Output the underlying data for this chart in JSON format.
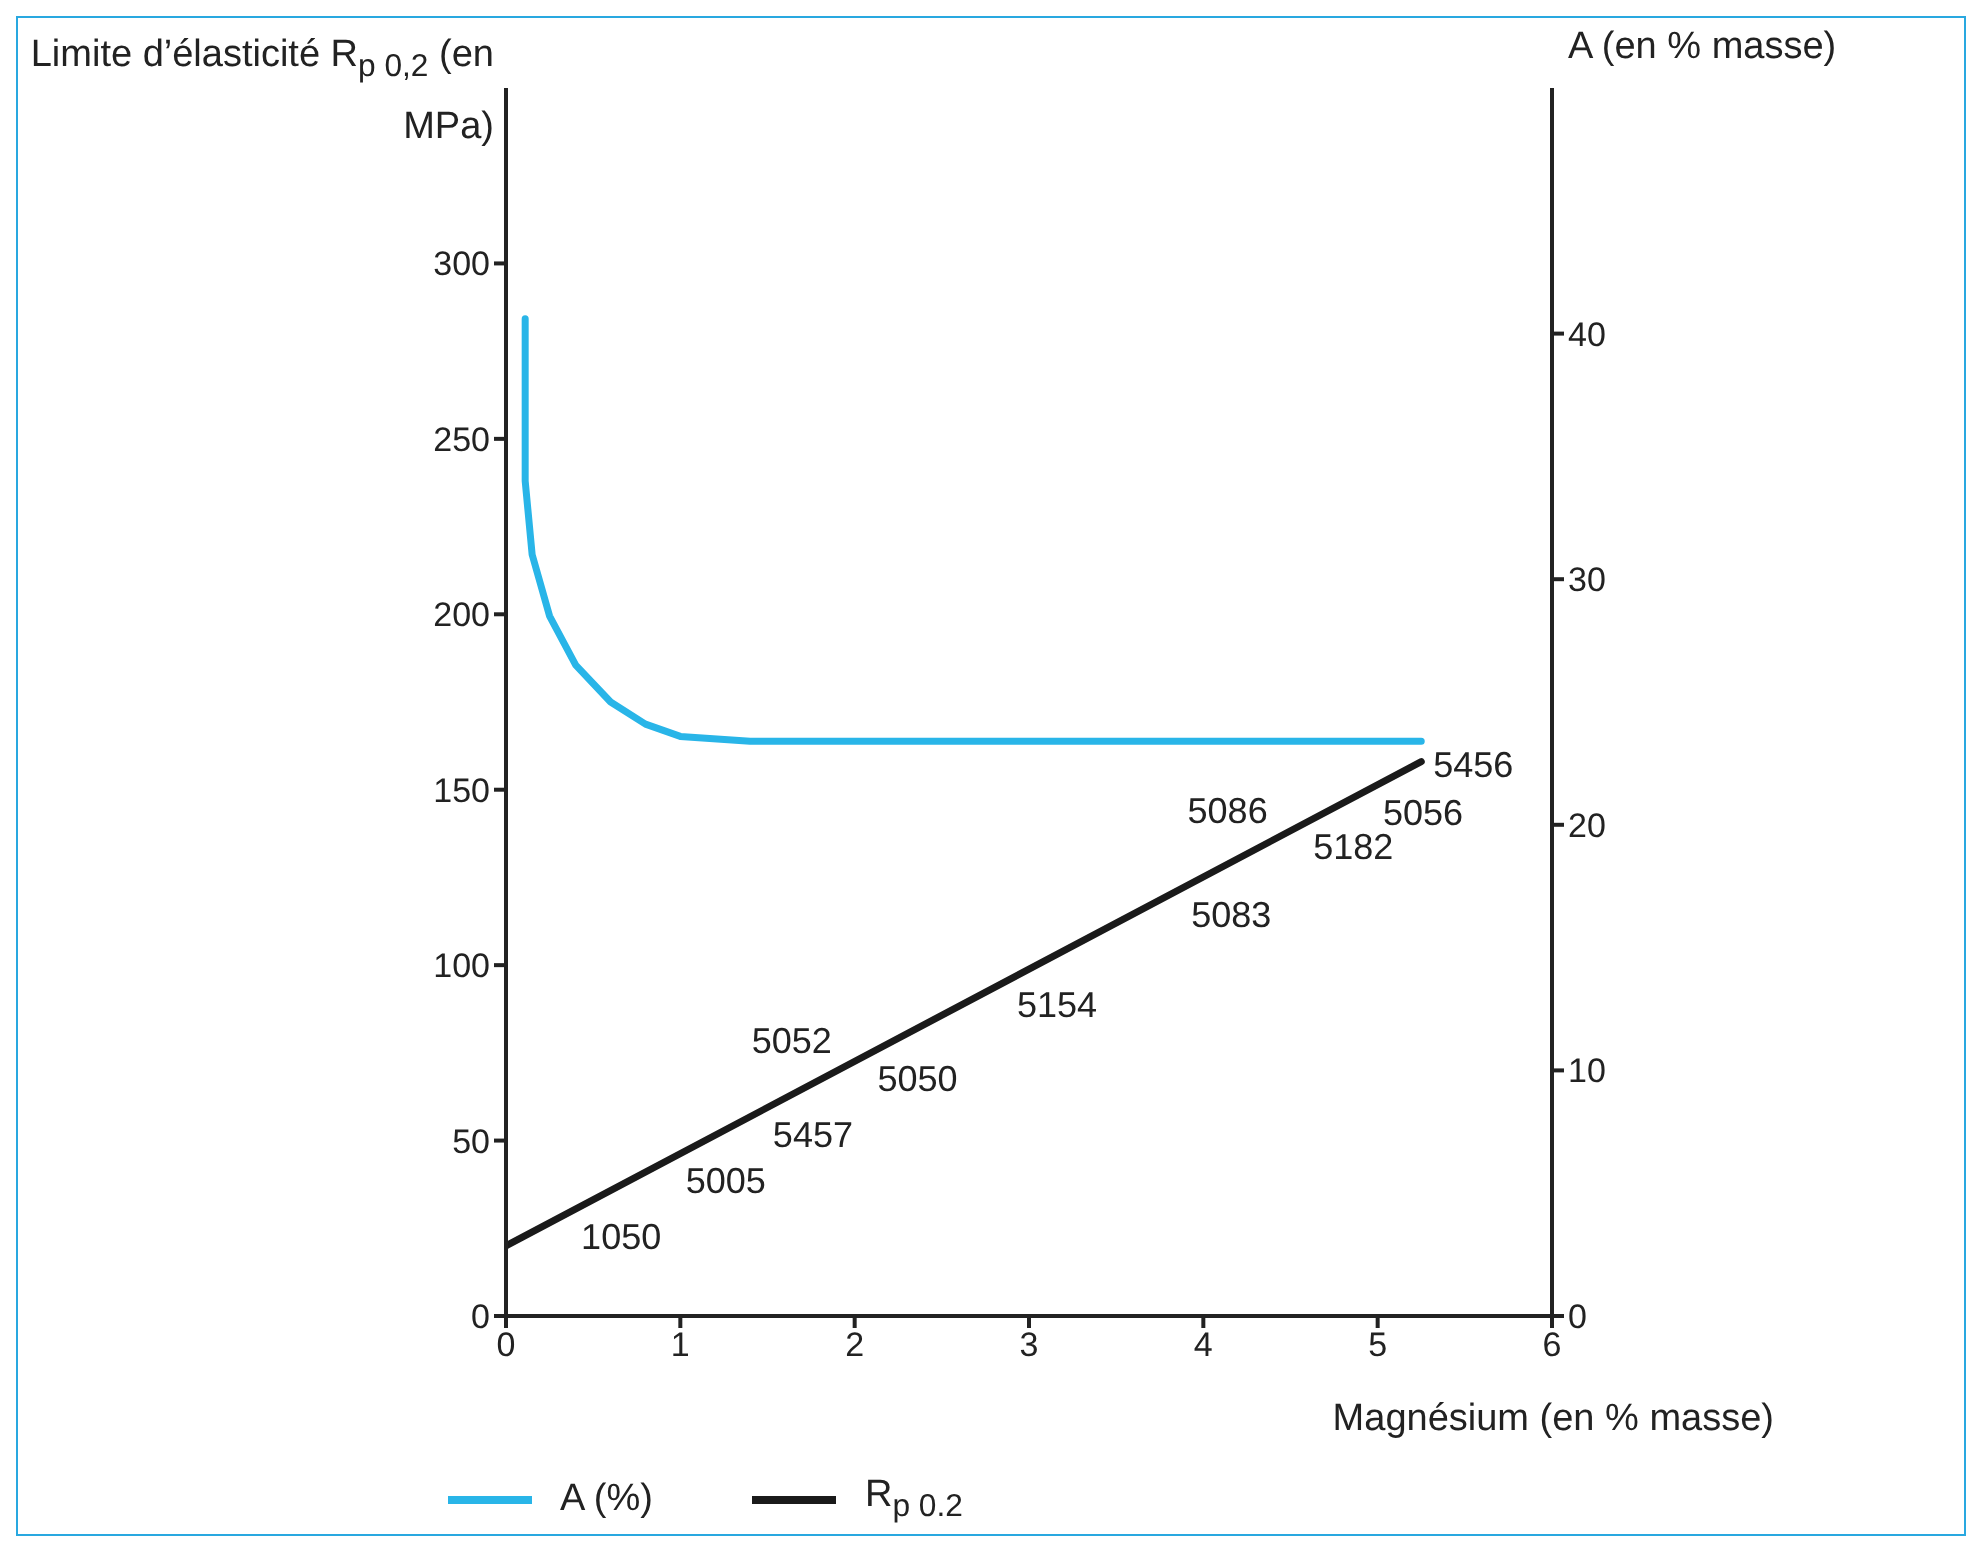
{
  "chart_data": {
    "type": "line",
    "xlabel": "Magnésium (en % masse)",
    "ylabel": "Limite d’élasticité R$_{p 0,2}$ (en MPa)",
    "y2label": "A (en % masse)",
    "xlim": [
      0,
      6
    ],
    "xticks": [
      0,
      1,
      2,
      3,
      4,
      5,
      6
    ],
    "ylim": [
      0,
      350
    ],
    "yticks": [
      0,
      50,
      100,
      150,
      200,
      250,
      300
    ],
    "y2lim": [
      0,
      50
    ],
    "y2ticks": [
      0,
      10,
      20,
      30,
      40
    ],
    "grid": false,
    "legend": "bottom",
    "marker": "none",
    "line_style": "solid",
    "series": [
      {
        "name": "A (%)",
        "color": "#29b5e8",
        "axis": "y2",
        "x": [
          0.11,
          0.11,
          0.15,
          0.25,
          0.4,
          0.6,
          0.8,
          1.0,
          1.4,
          5.25
        ],
        "values": [
          40.6,
          34,
          31,
          28.5,
          26.5,
          25,
          24.1,
          23.6,
          23.4,
          23.4
        ]
      },
      {
        "name": "R$_{p 0.2}$",
        "color": "#1a1a1a",
        "x": [
          0,
          5.25
        ],
        "values": [
          20,
          158
        ]
      }
    ],
    "annotations": [
      {
        "text": "1050",
        "x": 0.5,
        "y": 33
      },
      {
        "text": "5005",
        "x": 1.1,
        "y": 49
      },
      {
        "text": "5457",
        "x": 1.6,
        "y": 62
      },
      {
        "text": "5050",
        "x": 2.2,
        "y": 78
      },
      {
        "text": "5052",
        "x": 1.8,
        "y": 67
      },
      {
        "text": "5154",
        "x": 3.0,
        "y": 99
      },
      {
        "text": "5083",
        "x": 4.0,
        "y": 125
      },
      {
        "text": "5182",
        "x": 4.7,
        "y": 144
      },
      {
        "text": "5086",
        "x": 4.3,
        "y": 133
      },
      {
        "text": "5456",
        "x": 5.25,
        "y": 158
      },
      {
        "text": "5056",
        "x": 5.1,
        "y": 154
      }
    ]
  }
}
